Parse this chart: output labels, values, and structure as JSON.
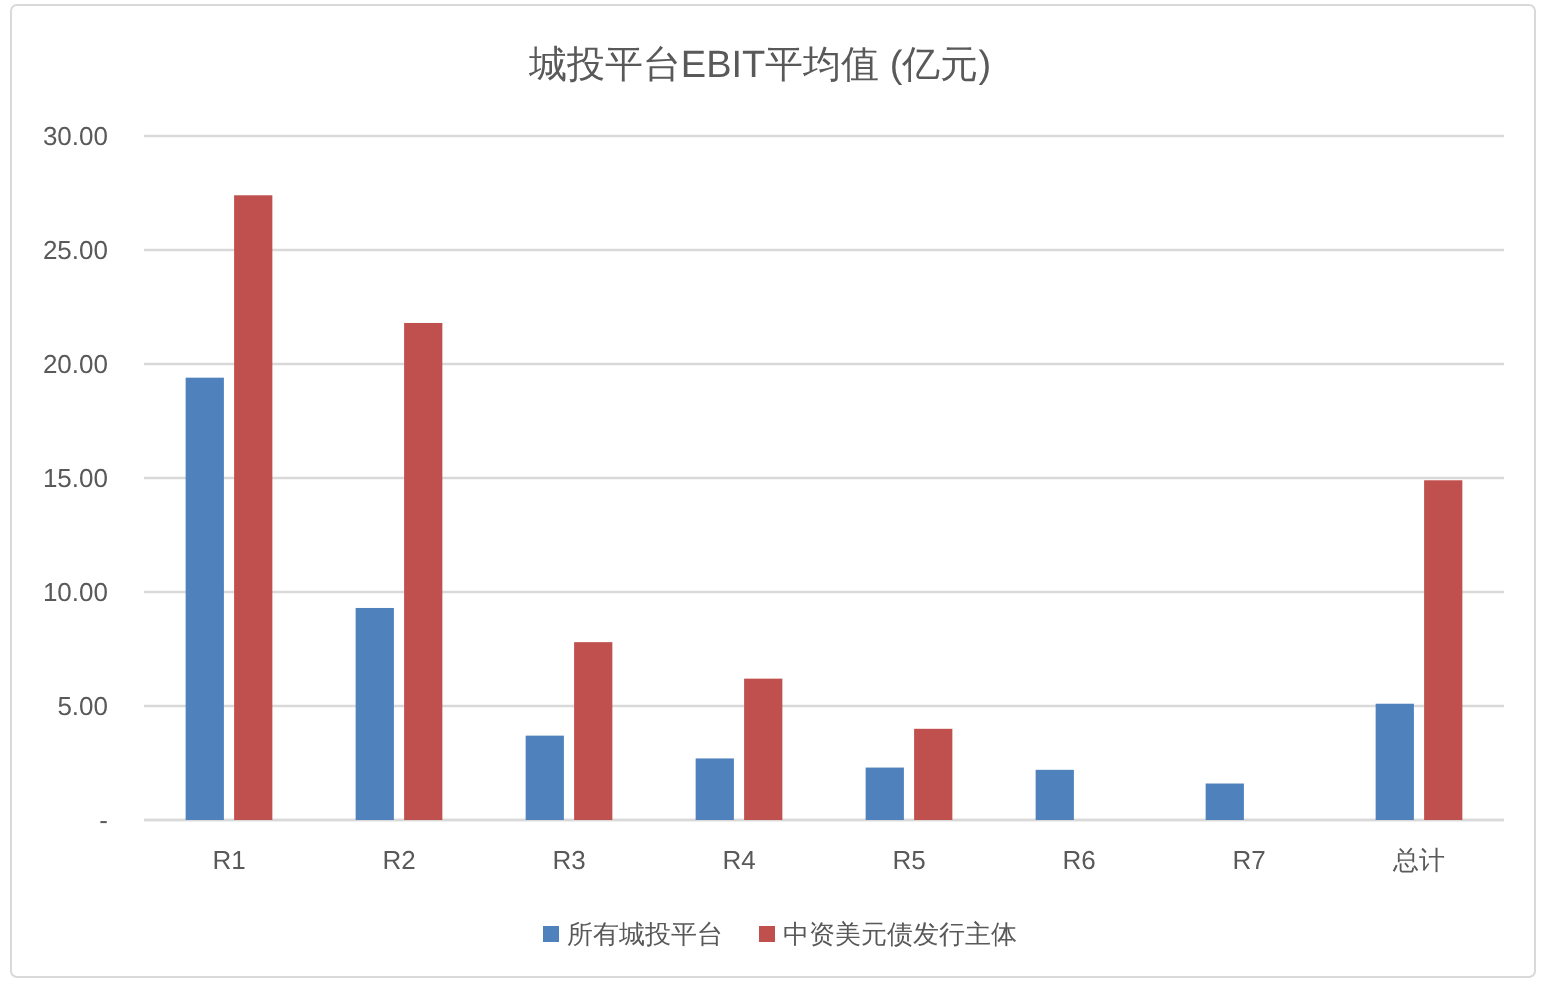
{
  "chart_data": {
    "type": "bar",
    "title": "城投平台EBIT平均值 (亿元)",
    "categories": [
      "R1",
      "R2",
      "R3",
      "R4",
      "R5",
      "R6",
      "R7",
      "总计"
    ],
    "series": [
      {
        "name": "所有城投平台",
        "color": "#4f81bd",
        "values": [
          19.4,
          9.3,
          3.7,
          2.7,
          2.3,
          2.2,
          1.6,
          5.1
        ]
      },
      {
        "name": "中资美元债发行主体",
        "color": "#c0504d",
        "values": [
          27.4,
          21.8,
          7.8,
          6.2,
          4.0,
          null,
          null,
          14.9
        ]
      }
    ],
    "ylim": [
      0,
      30
    ],
    "yticks": [
      {
        "value": 0,
        "label": "-"
      },
      {
        "value": 5,
        "label": "5.00"
      },
      {
        "value": 10,
        "label": "10.00"
      },
      {
        "value": 15,
        "label": "15.00"
      },
      {
        "value": 20,
        "label": "20.00"
      },
      {
        "value": 25,
        "label": "25.00"
      },
      {
        "value": 30,
        "label": "30.00"
      }
    ],
    "grid": "y",
    "legend": "bottom"
  }
}
